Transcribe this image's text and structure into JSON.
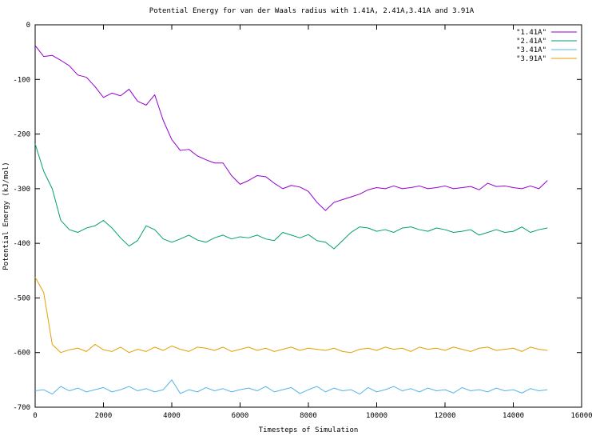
{
  "chart_data": {
    "type": "line",
    "title": "Potential Energy for van der Waals radius with 1.41A, 2.41A,3.41A and 3.91A",
    "xlabel": "Timesteps of Simulation",
    "ylabel": "Potential Energy (kJ/mol)",
    "xlim": [
      0,
      16000
    ],
    "ylim": [
      -700,
      0
    ],
    "xticks": [
      0,
      2000,
      4000,
      6000,
      8000,
      10000,
      12000,
      14000,
      16000
    ],
    "yticks": [
      0,
      -100,
      -200,
      -300,
      -400,
      -500,
      -600,
      -700
    ],
    "grid": false,
    "legend_position": "top-right",
    "series": [
      {
        "name": "\"1.41A\"",
        "color": "#9400d3",
        "x": [
          0,
          250,
          500,
          750,
          1000,
          1250,
          1500,
          1750,
          2000,
          2250,
          2500,
          2750,
          3000,
          3250,
          3500,
          3750,
          4000,
          4250,
          4500,
          4750,
          5000,
          5250,
          5500,
          5750,
          6000,
          6250,
          6500,
          6750,
          7000,
          7250,
          7500,
          7750,
          8000,
          8250,
          8500,
          8750,
          9000,
          9250,
          9500,
          9750,
          10000,
          10250,
          10500,
          10750,
          11000,
          11250,
          11500,
          11750,
          12000,
          12250,
          12500,
          12750,
          13000,
          13250,
          13500,
          13750,
          14000,
          14250,
          14500,
          14750,
          15000
        ],
        "y": [
          -38,
          -58,
          -56,
          -65,
          -75,
          -92,
          -96,
          -113,
          -133,
          -125,
          -130,
          -118,
          -140,
          -147,
          -128,
          -175,
          -210,
          -230,
          -228,
          -240,
          -247,
          -253,
          -253,
          -276,
          -292,
          -285,
          -276,
          -278,
          -290,
          -300,
          -294,
          -297,
          -305,
          -325,
          -340,
          -325,
          -320,
          -315,
          -310,
          -302,
          -298,
          -300,
          -295,
          -300,
          -298,
          -295,
          -300,
          -298,
          -295,
          -300,
          -298,
          -296,
          -302,
          -290,
          -296,
          -295,
          -298,
          -300,
          -295,
          -300,
          -285
        ]
      },
      {
        "name": "\"2.41A\"",
        "color": "#009e73",
        "x": [
          0,
          250,
          500,
          750,
          1000,
          1250,
          1500,
          1750,
          2000,
          2250,
          2500,
          2750,
          3000,
          3250,
          3500,
          3750,
          4000,
          4250,
          4500,
          4750,
          5000,
          5250,
          5500,
          5750,
          6000,
          6250,
          6500,
          6750,
          7000,
          7250,
          7500,
          7750,
          8000,
          8250,
          8500,
          8750,
          9000,
          9250,
          9500,
          9750,
          10000,
          10250,
          10500,
          10750,
          11000,
          11250,
          11500,
          11750,
          12000,
          12250,
          12500,
          12750,
          13000,
          13250,
          13500,
          13750,
          14000,
          14250,
          14500,
          14750,
          15000
        ],
        "y": [
          -218,
          -268,
          -300,
          -358,
          -375,
          -380,
          -372,
          -368,
          -358,
          -372,
          -390,
          -405,
          -395,
          -368,
          -375,
          -392,
          -398,
          -392,
          -385,
          -394,
          -398,
          -390,
          -385,
          -392,
          -388,
          -390,
          -385,
          -392,
          -395,
          -380,
          -385,
          -390,
          -384,
          -395,
          -398,
          -410,
          -395,
          -380,
          -370,
          -372,
          -378,
          -375,
          -380,
          -372,
          -370,
          -375,
          -378,
          -372,
          -375,
          -380,
          -378,
          -375,
          -385,
          -380,
          -375,
          -380,
          -378,
          -370,
          -380,
          -375,
          -372
        ]
      },
      {
        "name": "\"3.41A\"",
        "color": "#56b4e9",
        "x": [
          0,
          250,
          500,
          750,
          1000,
          1250,
          1500,
          1750,
          2000,
          2250,
          2500,
          2750,
          3000,
          3250,
          3500,
          3750,
          4000,
          4250,
          4500,
          4750,
          5000,
          5250,
          5500,
          5750,
          6000,
          6250,
          6500,
          6750,
          7000,
          7250,
          7500,
          7750,
          8000,
          8250,
          8500,
          8750,
          9000,
          9250,
          9500,
          9750,
          10000,
          10250,
          10500,
          10750,
          11000,
          11250,
          11500,
          11750,
          12000,
          12250,
          12500,
          12750,
          13000,
          13250,
          13500,
          13750,
          14000,
          14250,
          14500,
          14750,
          15000
        ],
        "y": [
          -670,
          -668,
          -676,
          -662,
          -670,
          -665,
          -672,
          -668,
          -664,
          -672,
          -668,
          -662,
          -670,
          -666,
          -672,
          -668,
          -650,
          -675,
          -668,
          -672,
          -664,
          -670,
          -666,
          -672,
          -668,
          -665,
          -670,
          -662,
          -672,
          -668,
          -664,
          -675,
          -668,
          -662,
          -672,
          -665,
          -670,
          -668,
          -676,
          -664,
          -672,
          -668,
          -662,
          -670,
          -666,
          -672,
          -665,
          -670,
          -668,
          -674,
          -664,
          -670,
          -668,
          -672,
          -665,
          -670,
          -668,
          -674,
          -666,
          -670,
          -668
        ]
      },
      {
        "name": "\"3.91A\"",
        "color": "#e69f00",
        "x": [
          0,
          250,
          500,
          750,
          1000,
          1250,
          1500,
          1750,
          2000,
          2250,
          2500,
          2750,
          3000,
          3250,
          3500,
          3750,
          4000,
          4250,
          4500,
          4750,
          5000,
          5250,
          5500,
          5750,
          6000,
          6250,
          6500,
          6750,
          7000,
          7250,
          7500,
          7750,
          8000,
          8250,
          8500,
          8750,
          9000,
          9250,
          9500,
          9750,
          10000,
          10250,
          10500,
          10750,
          11000,
          11250,
          11500,
          11750,
          12000,
          12250,
          12500,
          12750,
          13000,
          13250,
          13500,
          13750,
          14000,
          14250,
          14500,
          14750,
          15000
        ],
        "y": [
          -462,
          -490,
          -585,
          -600,
          -595,
          -592,
          -598,
          -585,
          -595,
          -598,
          -590,
          -600,
          -594,
          -598,
          -590,
          -596,
          -588,
          -594,
          -598,
          -590,
          -592,
          -596,
          -590,
          -598,
          -594,
          -590,
          -596,
          -592,
          -598,
          -594,
          -590,
          -596,
          -592,
          -594,
          -596,
          -592,
          -598,
          -600,
          -594,
          -592,
          -596,
          -590,
          -594,
          -592,
          -598,
          -590,
          -594,
          -592,
          -596,
          -590,
          -594,
          -598,
          -592,
          -590,
          -596,
          -594,
          -592,
          -598,
          -590,
          -594,
          -596
        ]
      }
    ]
  }
}
